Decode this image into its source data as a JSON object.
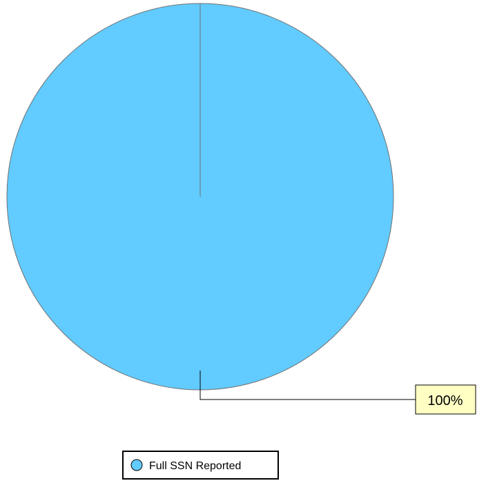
{
  "chart_data": {
    "type": "pie",
    "title": "",
    "legend_position": "bottom",
    "slices": [
      {
        "name": "Full SSN Reported",
        "value": 100,
        "label": "100%",
        "color": "#62CBFF"
      }
    ]
  },
  "colors": {
    "pie_outline": "#707070",
    "label_background": "#FFFFC4",
    "leader_line": "#000000"
  }
}
